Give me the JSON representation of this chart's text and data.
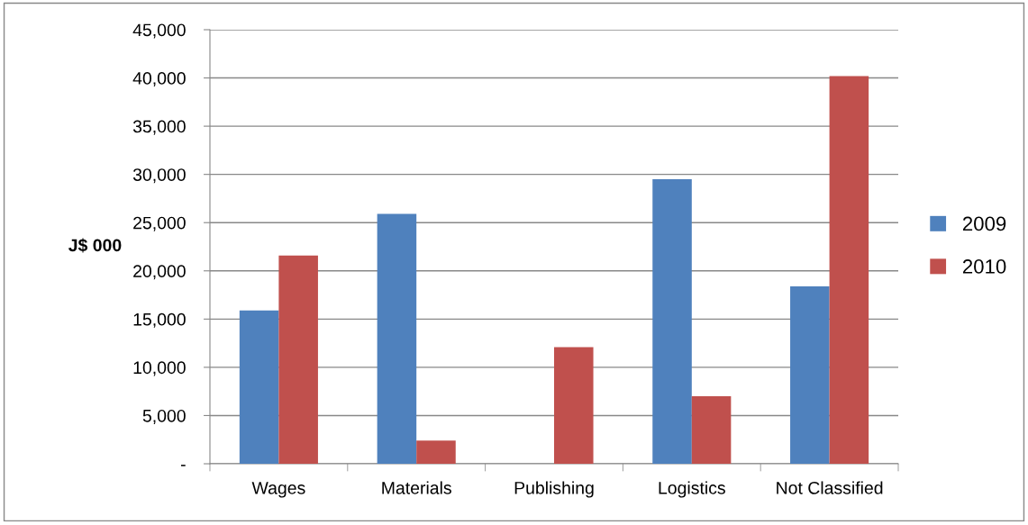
{
  "chart_data": {
    "type": "bar",
    "ylabel": "J$ 000",
    "categories": [
      "Wages",
      "Materials",
      "Publishing",
      "Logistics",
      "Not Classified"
    ],
    "series": [
      {
        "name": "2009",
        "color": "#4f81bd",
        "values": [
          15900,
          25900,
          null,
          29500,
          18400
        ]
      },
      {
        "name": "2010",
        "color": "#c0504d",
        "values": [
          21600,
          2400,
          12100,
          7000,
          40200
        ]
      }
    ],
    "ylim": [
      0,
      45000
    ],
    "yticks": [
      {
        "value": 0,
        "label": "-"
      },
      {
        "value": 5000,
        "label": "5,000"
      },
      {
        "value": 10000,
        "label": "10,000"
      },
      {
        "value": 15000,
        "label": "15,000"
      },
      {
        "value": 20000,
        "label": "20,000"
      },
      {
        "value": 25000,
        "label": "25,000"
      },
      {
        "value": 30000,
        "label": "30,000"
      },
      {
        "value": 35000,
        "label": "35,000"
      },
      {
        "value": 40000,
        "label": "40,000"
      },
      {
        "value": 45000,
        "label": "45,000"
      }
    ],
    "grid": "y",
    "legend": "right"
  }
}
